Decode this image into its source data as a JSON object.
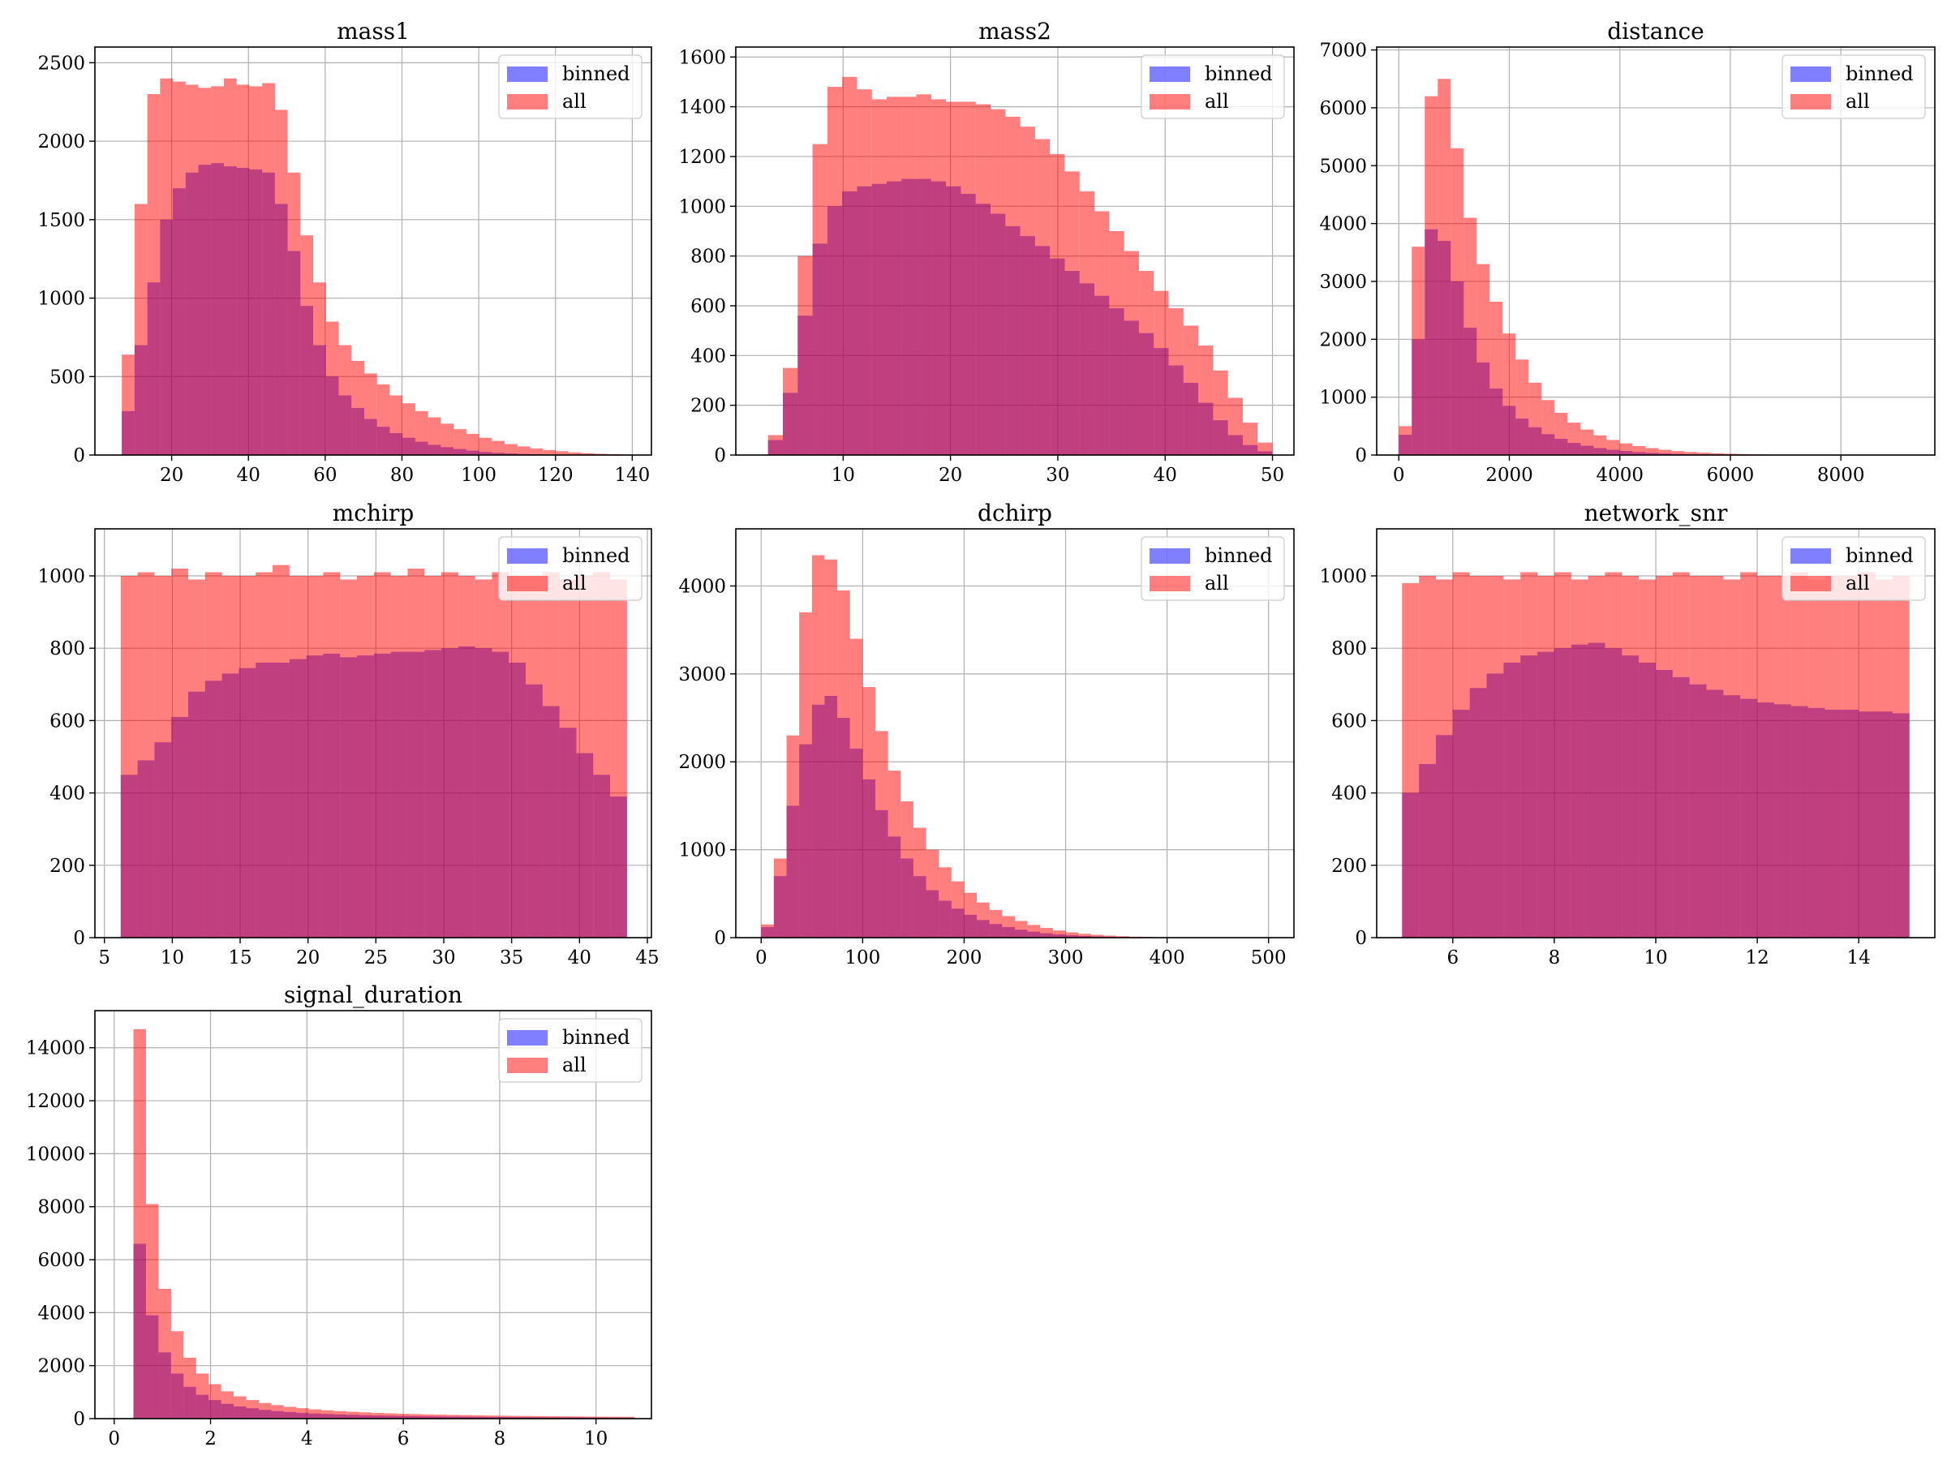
{
  "chart_data": [
    {
      "type": "bar",
      "title": "mass1",
      "xlabel": "",
      "ylabel": "",
      "xlim": [
        0,
        145
      ],
      "ylim": [
        0,
        2600
      ],
      "xticks": [
        20,
        40,
        60,
        80,
        100,
        120,
        140
      ],
      "yticks": [
        0,
        500,
        1000,
        1500,
        2000,
        2500
      ],
      "bin_range": [
        7,
        140
      ],
      "legend_position": "top-right",
      "grid": true,
      "series": [
        {
          "name": "binned",
          "values": [
            280,
            700,
            1100,
            1500,
            1700,
            1800,
            1850,
            1860,
            1840,
            1830,
            1820,
            1800,
            1600,
            1300,
            950,
            700,
            500,
            380,
            300,
            230,
            180,
            140,
            110,
            85,
            65,
            50,
            38,
            28,
            20,
            14,
            10,
            7,
            5,
            3,
            2,
            1,
            1,
            0,
            0,
            0
          ]
        },
        {
          "name": "all",
          "values": [
            640,
            1600,
            2300,
            2400,
            2380,
            2360,
            2340,
            2350,
            2400,
            2360,
            2350,
            2370,
            2200,
            1800,
            1400,
            1100,
            850,
            700,
            600,
            520,
            450,
            380,
            330,
            280,
            240,
            200,
            165,
            135,
            110,
            90,
            70,
            55,
            42,
            32,
            24,
            17,
            12,
            8,
            5,
            3
          ]
        }
      ]
    },
    {
      "type": "bar",
      "title": "mass2",
      "xlabel": "",
      "ylabel": "",
      "xlim": [
        0,
        52
      ],
      "ylim": [
        0,
        1640
      ],
      "xticks": [
        10,
        20,
        30,
        40,
        50
      ],
      "yticks": [
        0,
        200,
        400,
        600,
        800,
        1000,
        1200,
        1400,
        1600
      ],
      "bin_range": [
        3,
        50
      ],
      "legend_position": "top-right",
      "grid": true,
      "series": [
        {
          "name": "binned",
          "values": [
            60,
            250,
            560,
            850,
            1000,
            1060,
            1080,
            1090,
            1100,
            1110,
            1110,
            1100,
            1080,
            1050,
            1010,
            970,
            920,
            880,
            840,
            790,
            740,
            690,
            640,
            590,
            540,
            490,
            430,
            360,
            290,
            210,
            140,
            80,
            40,
            15
          ]
        },
        {
          "name": "all",
          "values": [
            80,
            350,
            800,
            1250,
            1480,
            1520,
            1470,
            1430,
            1440,
            1440,
            1450,
            1430,
            1420,
            1420,
            1410,
            1390,
            1360,
            1320,
            1270,
            1210,
            1140,
            1060,
            980,
            900,
            820,
            740,
            660,
            590,
            520,
            440,
            340,
            230,
            130,
            50
          ]
        }
      ]
    },
    {
      "type": "bar",
      "title": "distance",
      "xlabel": "",
      "ylabel": "",
      "xlim": [
        -400,
        9700
      ],
      "ylim": [
        0,
        7050
      ],
      "xticks": [
        0,
        2000,
        4000,
        6000,
        8000
      ],
      "yticks": [
        0,
        1000,
        2000,
        3000,
        4000,
        5000,
        6000,
        7000
      ],
      "bin_range": [
        0,
        9400
      ],
      "legend_position": "top-right",
      "grid": true,
      "series": [
        {
          "name": "binned",
          "values": [
            350,
            2000,
            3900,
            3700,
            3000,
            2200,
            1600,
            1150,
            850,
            630,
            480,
            360,
            280,
            210,
            160,
            120,
            90,
            70,
            50,
            38,
            28,
            20,
            14,
            10,
            7,
            5,
            3,
            2,
            1,
            1,
            0,
            0,
            0,
            0,
            0,
            0,
            0,
            0,
            0,
            0
          ]
        },
        {
          "name": "all",
          "values": [
            500,
            3600,
            6200,
            6500,
            5300,
            4100,
            3300,
            2650,
            2100,
            1650,
            1250,
            950,
            730,
            560,
            440,
            340,
            260,
            200,
            155,
            120,
            90,
            68,
            52,
            40,
            30,
            22,
            16,
            11,
            8,
            6,
            4,
            3,
            2,
            1,
            1,
            1,
            0,
            0,
            0,
            0
          ]
        }
      ]
    },
    {
      "type": "bar",
      "title": "mchirp",
      "xlabel": "",
      "ylabel": "",
      "xlim": [
        4.3,
        45.3
      ],
      "ylim": [
        0,
        1130
      ],
      "xticks": [
        5,
        10,
        15,
        20,
        25,
        30,
        35,
        40,
        45
      ],
      "yticks": [
        0,
        200,
        400,
        600,
        800,
        1000
      ],
      "bin_range": [
        6.2,
        43.5
      ],
      "legend_position": "top-right",
      "grid": true,
      "series": [
        {
          "name": "binned",
          "values": [
            450,
            490,
            540,
            610,
            680,
            710,
            730,
            745,
            760,
            760,
            770,
            780,
            785,
            775,
            780,
            785,
            790,
            790,
            795,
            800,
            805,
            800,
            790,
            760,
            700,
            640,
            580,
            510,
            450,
            390
          ]
        },
        {
          "name": "all",
          "values": [
            1000,
            1010,
            1000,
            1020,
            990,
            1010,
            1000,
            1000,
            1010,
            1030,
            1000,
            1000,
            1010,
            990,
            1000,
            1010,
            1000,
            1020,
            1000,
            1010,
            1000,
            990,
            1010,
            1000,
            1000,
            1010,
            990,
            1000,
            1010,
            990
          ]
        }
      ]
    },
    {
      "type": "bar",
      "title": "dchirp",
      "xlabel": "",
      "ylabel": "",
      "xlim": [
        -25,
        525
      ],
      "ylim": [
        0,
        4650
      ],
      "xticks": [
        0,
        100,
        200,
        300,
        400,
        500
      ],
      "yticks": [
        0,
        1000,
        2000,
        3000,
        4000
      ],
      "bin_range": [
        0,
        500
      ],
      "legend_position": "top-right",
      "grid": true,
      "series": [
        {
          "name": "binned",
          "values": [
            120,
            700,
            1500,
            2200,
            2650,
            2750,
            2500,
            2150,
            1800,
            1450,
            1150,
            900,
            700,
            540,
            420,
            330,
            260,
            200,
            155,
            120,
            90,
            68,
            50,
            37,
            27,
            19,
            13,
            9,
            6,
            4,
            3,
            2,
            1,
            1,
            0,
            0,
            0,
            0,
            0,
            0
          ]
        },
        {
          "name": "all",
          "values": [
            150,
            900,
            2300,
            3700,
            4350,
            4300,
            3950,
            3400,
            2850,
            2350,
            1900,
            1550,
            1250,
            1000,
            800,
            640,
            510,
            400,
            315,
            245,
            190,
            145,
            110,
            82,
            60,
            44,
            32,
            23,
            16,
            11,
            8,
            5,
            4,
            3,
            2,
            1,
            1,
            0,
            0,
            0
          ]
        }
      ]
    },
    {
      "type": "bar",
      "title": "network_snr",
      "xlabel": "",
      "ylabel": "",
      "xlim": [
        4.5,
        15.5
      ],
      "ylim": [
        0,
        1130
      ],
      "xticks": [
        6,
        8,
        10,
        12,
        14
      ],
      "yticks": [
        0,
        200,
        400,
        600,
        800,
        1000
      ],
      "bin_range": [
        5,
        15
      ],
      "legend_position": "top-right",
      "grid": true,
      "series": [
        {
          "name": "binned",
          "values": [
            400,
            480,
            560,
            630,
            690,
            730,
            760,
            780,
            790,
            800,
            810,
            815,
            800,
            780,
            760,
            740,
            720,
            700,
            685,
            670,
            660,
            650,
            645,
            640,
            635,
            630,
            630,
            625,
            625,
            620
          ]
        },
        {
          "name": "all",
          "values": [
            980,
            1000,
            990,
            1010,
            1000,
            1000,
            990,
            1010,
            1000,
            1010,
            990,
            1000,
            1010,
            1000,
            990,
            1000,
            1010,
            1000,
            1000,
            990,
            1010,
            1000,
            1000,
            1010,
            990,
            1000,
            1000,
            1010,
            990,
            1000
          ]
        }
      ]
    },
    {
      "type": "bar",
      "title": "signal_duration",
      "xlabel": "",
      "ylabel": "",
      "xlim": [
        -0.4,
        11.15
      ],
      "ylim": [
        0,
        15400
      ],
      "xticks": [
        0,
        2,
        4,
        6,
        8,
        10
      ],
      "yticks": [
        0,
        2000,
        4000,
        6000,
        8000,
        10000,
        12000,
        14000
      ],
      "bin_range": [
        0.4,
        10.8
      ],
      "legend_position": "top-right",
      "grid": true,
      "series": [
        {
          "name": "binned",
          "values": [
            6600,
            3900,
            2500,
            1700,
            1200,
            900,
            700,
            560,
            460,
            390,
            330,
            285,
            250,
            220,
            195,
            175,
            158,
            143,
            130,
            120,
            110,
            102,
            95,
            88,
            82,
            77,
            72,
            68,
            64,
            60,
            57,
            54,
            51,
            49,
            46,
            44,
            42,
            40,
            38,
            36
          ]
        },
        {
          "name": "all",
          "values": [
            14700,
            8100,
            4900,
            3300,
            2300,
            1700,
            1300,
            1030,
            840,
            700,
            590,
            510,
            445,
            395,
            350,
            315,
            285,
            258,
            236,
            216,
            200,
            185,
            172,
            160,
            150,
            140,
            132,
            124,
            117,
            110,
            104,
            99,
            94,
            89,
            85,
            81,
            77,
            74,
            71,
            68
          ]
        }
      ]
    }
  ],
  "legend": {
    "binned_label": "binned",
    "all_label": "all"
  },
  "colors": {
    "binned": "#0000ff",
    "binned_opacity": 0.5,
    "all": "#ff0000",
    "all_opacity": 0.5,
    "grid": "#b0b0b0",
    "axis": "#000000"
  }
}
